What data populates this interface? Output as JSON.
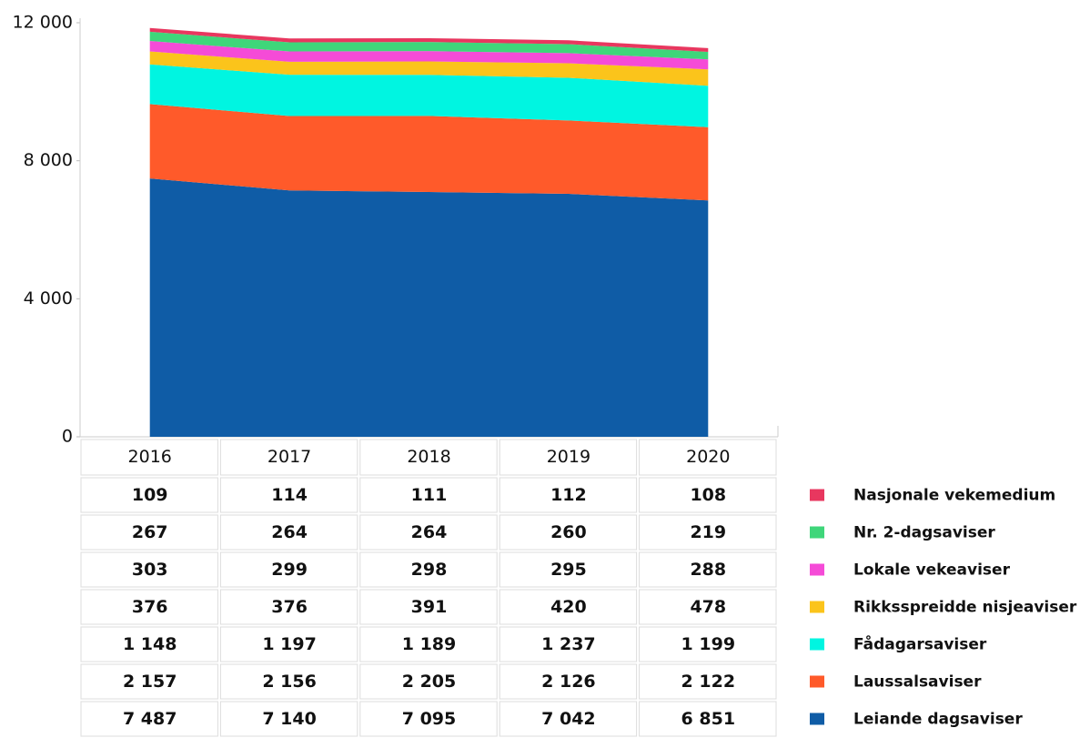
{
  "chart_data": {
    "type": "stacked_area",
    "categories": [
      "2016",
      "2017",
      "2018",
      "2019",
      "2020"
    ],
    "ylim": [
      0,
      12000
    ],
    "yticks": [
      0,
      {
        "value": 4000,
        "label": "4 000"
      },
      {
        "value": 8000,
        "label": "8 000"
      },
      {
        "value": 12000,
        "label": "12 000"
      }
    ],
    "series": [
      {
        "name": "Nasjonale vekemedium",
        "color": "#e8375f",
        "values": [
          109,
          114,
          111,
          112,
          108
        ],
        "value_labels": [
          "109",
          "114",
          "111",
          "112",
          "108"
        ]
      },
      {
        "name": "Nr. 2-dagsaviser",
        "color": "#3fd67a",
        "values": [
          267,
          264,
          264,
          260,
          219
        ],
        "value_labels": [
          "267",
          "264",
          "264",
          "260",
          "219"
        ]
      },
      {
        "name": "Lokale vekeaviser",
        "color": "#f54bd7",
        "values": [
          303,
          299,
          298,
          295,
          288
        ],
        "value_labels": [
          "303",
          "299",
          "298",
          "295",
          "288"
        ]
      },
      {
        "name": "Rikksspreidde nisjeaviser",
        "color": "#fbc41b",
        "values": [
          376,
          376,
          391,
          420,
          478
        ],
        "value_labels": [
          "376",
          "376",
          "391",
          "420",
          "478"
        ]
      },
      {
        "name": "Fådagarsaviser",
        "color": "#00f5e1",
        "values": [
          1148,
          1197,
          1189,
          1237,
          1199
        ],
        "value_labels": [
          "1 148",
          "1 197",
          "1 189",
          "1 237",
          "1 199"
        ]
      },
      {
        "name": "Laussalsaviser",
        "color": "#ff5a2a",
        "values": [
          2157,
          2156,
          2205,
          2126,
          2122
        ],
        "value_labels": [
          "2 157",
          "2 156",
          "2 205",
          "2 126",
          "2 122"
        ]
      },
      {
        "name": "Leiande dagsaviser",
        "color": "#0f5ca6",
        "values": [
          7487,
          7140,
          7095,
          7042,
          6851
        ],
        "value_labels": [
          "7 487",
          "7 140",
          "7 095",
          "7 042",
          "6 851"
        ]
      }
    ]
  }
}
